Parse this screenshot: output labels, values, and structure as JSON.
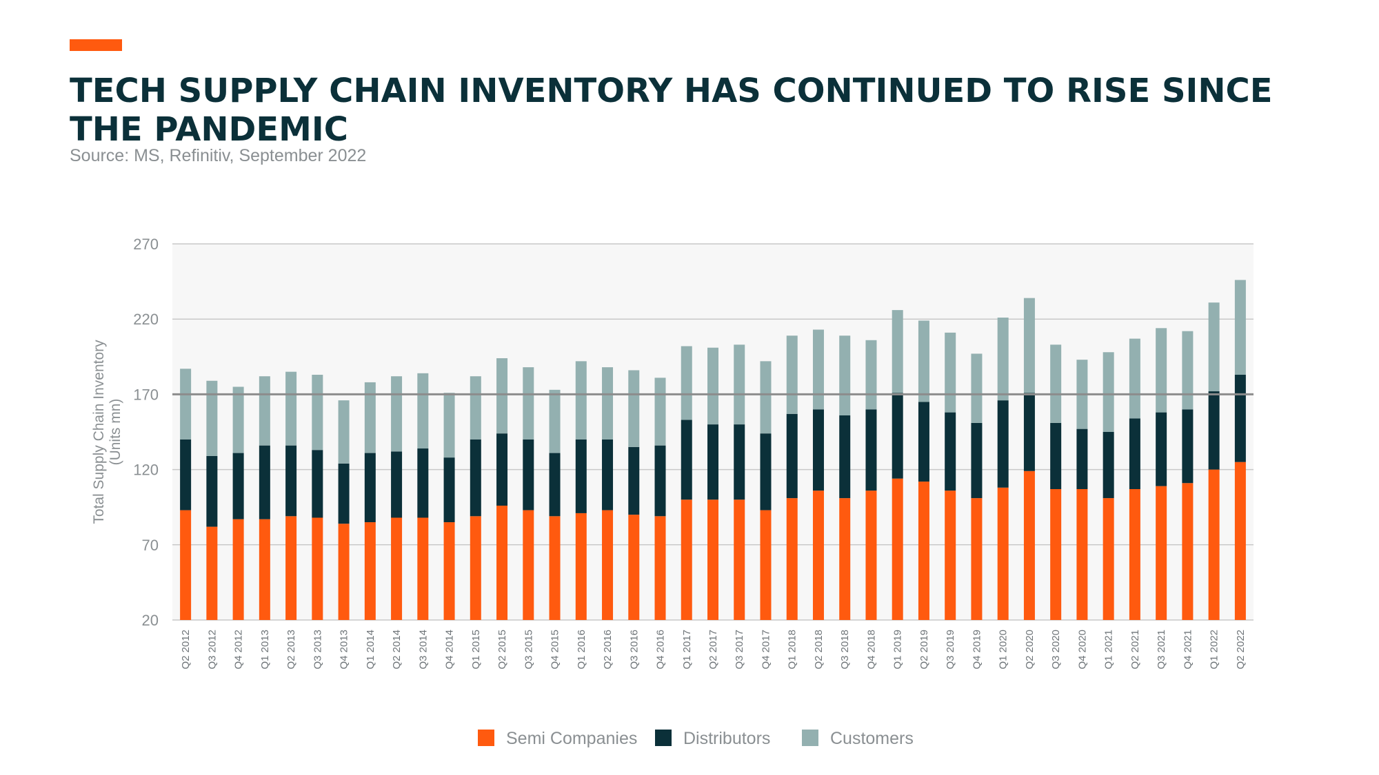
{
  "header": {
    "title": "TECH SUPPLY CHAIN INVENTORY HAS CONTINUED TO RISE SINCE THE PANDEMIC",
    "source": "Source: MS, Refinitiv, September 2022"
  },
  "colors": {
    "accent": "#ff5a0f",
    "semi": "#ff5a0f",
    "distributors": "#0b3039",
    "customers": "#93b0b0",
    "plot_bg": "#f7f7f7",
    "gridline": "#c8c8c8",
    "reference_line": "#8c8c8c"
  },
  "chart_data": {
    "type": "bar",
    "stacked": true,
    "ylabel": "Total Supply Chain Inventory (Units mn)",
    "ylabel_lines": [
      "Total Supply Chain Inventory",
      "(Units mn)"
    ],
    "ylim": [
      20,
      270
    ],
    "yticks": [
      20,
      70,
      120,
      170,
      220,
      270
    ],
    "reference_line": 170,
    "grid": true,
    "legend_position": "bottom",
    "categories": [
      "Q2 2012",
      "Q3 2012",
      "Q4 2012",
      "Q1 2013",
      "Q2 2013",
      "Q3 2013",
      "Q4 2013",
      "Q1 2014",
      "Q2 2014",
      "Q3 2014",
      "Q4 2014",
      "Q1 2015",
      "Q2 2015",
      "Q3 2015",
      "Q4 2015",
      "Q1 2016",
      "Q2 2016",
      "Q3 2016",
      "Q4 2016",
      "Q1 2017",
      "Q2 2017",
      "Q3 2017",
      "Q4 2017",
      "Q1 2018",
      "Q2 2018",
      "Q3 2018",
      "Q4 2018",
      "Q1 2019",
      "Q2 2019",
      "Q3 2019",
      "Q4 2019",
      "Q1 2020",
      "Q2 2020",
      "Q3 2020",
      "Q4 2020",
      "Q1 2021",
      "Q2 2021",
      "Q3 2021",
      "Q4 2021",
      "Q1 2022",
      "Q2 2022"
    ],
    "series": [
      {
        "name": "Semi Companies",
        "color": "#ff5a0f",
        "values": [
          73,
          62,
          67,
          67,
          69,
          68,
          64,
          65,
          68,
          68,
          65,
          69,
          76,
          73,
          69,
          71,
          73,
          70,
          69,
          80,
          80,
          80,
          73,
          81,
          86,
          81,
          86,
          94,
          92,
          86,
          81,
          88,
          99,
          87,
          87,
          81,
          87,
          89,
          91,
          100,
          105
        ]
      },
      {
        "name": "Distributors",
        "color": "#0b3039",
        "values": [
          47,
          47,
          44,
          49,
          47,
          45,
          40,
          46,
          44,
          46,
          43,
          51,
          48,
          47,
          42,
          49,
          47,
          45,
          47,
          53,
          50,
          50,
          51,
          56,
          54,
          55,
          54,
          57,
          53,
          52,
          50,
          58,
          52,
          44,
          40,
          44,
          47,
          49,
          49,
          52,
          58
        ]
      },
      {
        "name": "Customers",
        "color": "#93b0b0",
        "values": [
          47,
          50,
          44,
          46,
          49,
          50,
          42,
          47,
          50,
          50,
          43,
          42,
          50,
          48,
          42,
          52,
          48,
          51,
          45,
          49,
          51,
          53,
          48,
          52,
          53,
          53,
          46,
          55,
          54,
          53,
          46,
          55,
          63,
          52,
          46,
          53,
          53,
          56,
          52,
          59,
          63
        ]
      }
    ]
  }
}
